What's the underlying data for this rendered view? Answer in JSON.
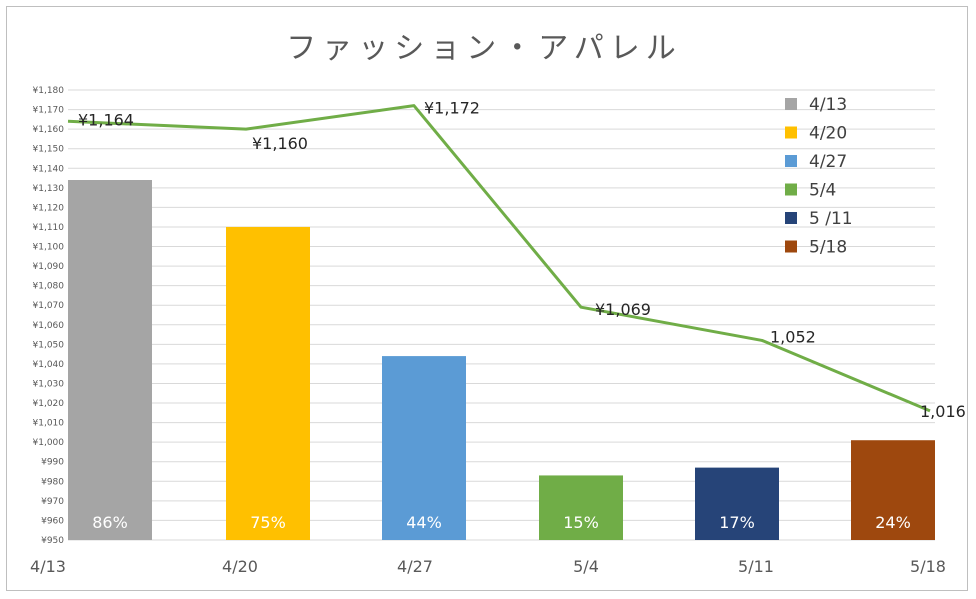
{
  "chart_data": {
    "type": "bar",
    "title": "ファッション・アパレル",
    "xlabel": "",
    "ylabel": "",
    "categories": [
      "4/13",
      "4/20",
      "4/27",
      "5/4",
      "5/11",
      "5/18"
    ],
    "ylim": [
      950,
      1180
    ],
    "ytick_step": 10,
    "ytick_labels": [
      "¥950",
      "¥960",
      "¥970",
      "¥980",
      "¥990",
      "¥1,000",
      "¥1,010",
      "¥1,020",
      "¥1,030",
      "¥1,040",
      "¥1,050",
      "¥1,060",
      "¥1,070",
      "¥1,080",
      "¥1,090",
      "¥1,100",
      "¥1,110",
      "¥1,120",
      "¥1,130",
      "¥1,140",
      "¥1,150",
      "¥1,160",
      "¥1,170",
      "¥1,180"
    ],
    "grid": true,
    "legend_position": "right",
    "bars": {
      "values": [
        1134,
        1110,
        1044,
        983,
        987,
        1001
      ],
      "labels": [
        "86%",
        "75%",
        "44%",
        "15%",
        "17%",
        "24%"
      ],
      "colors": [
        "#a5a5a5",
        "#ffc000",
        "#5b9bd5",
        "#70ad47",
        "#264478",
        "#9e480e"
      ]
    },
    "line": {
      "values": [
        1164,
        1160,
        1172,
        1069,
        1052,
        1016
      ],
      "labels": [
        "¥1,164",
        "¥1,160",
        "¥1,172",
        "¥1,069",
        "1,052",
        "1,016"
      ],
      "color": "#70ad47"
    },
    "legend": [
      "4/13",
      "4/20",
      "4/27",
      "5/4",
      "5 /11",
      "5/18"
    ]
  }
}
